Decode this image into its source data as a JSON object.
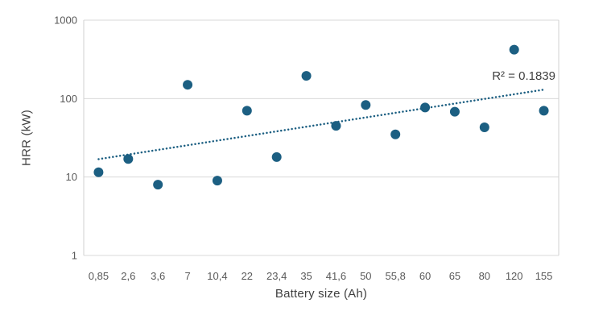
{
  "chart_data": {
    "type": "scatter",
    "title": "",
    "xlabel": "Battery size (Ah)",
    "ylabel": "HRR (kW)",
    "categories": [
      "0,85",
      "2,6",
      "3,6",
      "7",
      "10,4",
      "22",
      "23,4",
      "35",
      "41,6",
      "50",
      "55,8",
      "60",
      "65",
      "80",
      "120",
      "155"
    ],
    "values": [
      11.5,
      17,
      8,
      150,
      9,
      70,
      18,
      195,
      45,
      83,
      35,
      77,
      68,
      43,
      420,
      70
    ],
    "series_name": "HRR vs battery size",
    "y_scale": "log",
    "ylim": [
      1,
      1000
    ],
    "y_ticks": [
      1000,
      100,
      10,
      1
    ],
    "grid": "horizontal-only",
    "legend": "none",
    "annotation": "R² = 0.1839",
    "trendline": {
      "style": "dotted",
      "start_value": 16.9,
      "end_value": 130,
      "r_squared": 0.1839
    },
    "colors": {
      "point": "#1C5F82",
      "trendline": "#1C5F82",
      "gridline": "#D9D9D9",
      "axis_line": "#D0D0D0",
      "tick_text": "#595959",
      "title_text": "#404040",
      "background": "#FFFFFF"
    }
  }
}
